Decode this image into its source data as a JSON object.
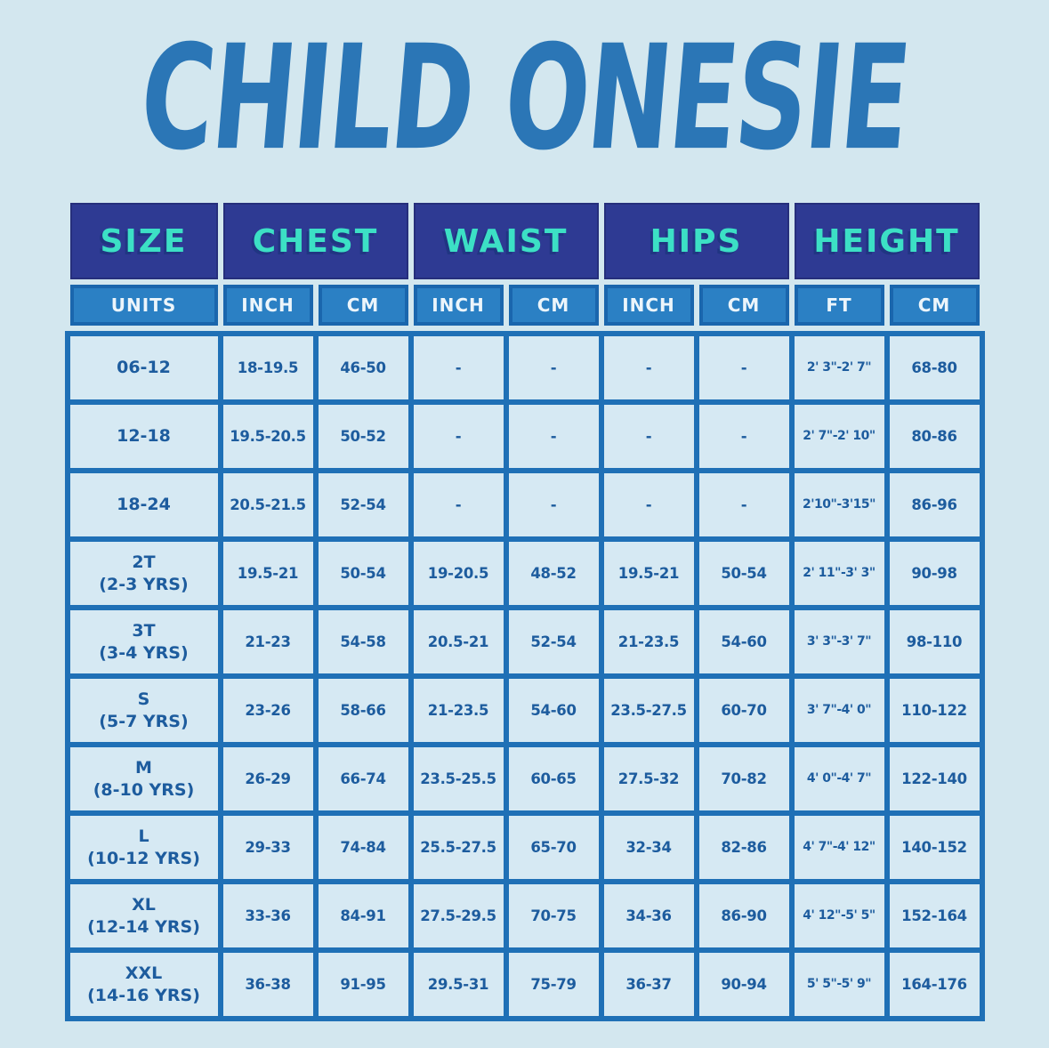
{
  "title": "CHILD ONESIE",
  "colors": {
    "page_background": "#d3e7ef",
    "title_blue": "#2b76b6",
    "header_navy": "#2e3a93",
    "header_teal_text": "#3ce0c5",
    "unit_header_blue": "#2b80c4",
    "unit_header_border": "#1a66ad",
    "unit_header_text": "#ecf5fb",
    "grid_border_blue": "#1f70b6",
    "cell_background": "#d6e9f3",
    "cell_text_blue": "#1d5c9e"
  },
  "table": {
    "column_groups": [
      {
        "label": "SIZE",
        "span": 1
      },
      {
        "label": "CHEST",
        "span": 2
      },
      {
        "label": "WAIST",
        "span": 2
      },
      {
        "label": "HIPS",
        "span": 2
      },
      {
        "label": "HEIGHT",
        "span": 2
      }
    ],
    "unit_headers": [
      "UNITS",
      "INCH",
      "CM",
      "INCH",
      "CM",
      "INCH",
      "CM",
      "FT",
      "CM"
    ],
    "rows": [
      {
        "size_line1": "06-12",
        "size_line2": "",
        "cells": [
          "18-19.5",
          "46-50",
          "-",
          "-",
          "-",
          "-",
          "2' 3\"-2' 7\"",
          "68-80"
        ]
      },
      {
        "size_line1": "12-18",
        "size_line2": "",
        "cells": [
          "19.5-20.5",
          "50-52",
          "-",
          "-",
          "-",
          "-",
          "2' 7\"-2' 10\"",
          "80-86"
        ]
      },
      {
        "size_line1": "18-24",
        "size_line2": "",
        "cells": [
          "20.5-21.5",
          "52-54",
          "-",
          "-",
          "-",
          "-",
          "2'10\"-3'15\"",
          "86-96"
        ]
      },
      {
        "size_line1": "2T",
        "size_line2": "(2-3 YRS)",
        "cells": [
          "19.5-21",
          "50-54",
          "19-20.5",
          "48-52",
          "19.5-21",
          "50-54",
          "2' 11\"-3' 3\"",
          "90-98"
        ]
      },
      {
        "size_line1": "3T",
        "size_line2": "(3-4 YRS)",
        "cells": [
          "21-23",
          "54-58",
          "20.5-21",
          "52-54",
          "21-23.5",
          "54-60",
          "3' 3\"-3' 7\"",
          "98-110"
        ]
      },
      {
        "size_line1": "S",
        "size_line2": "(5-7 YRS)",
        "cells": [
          "23-26",
          "58-66",
          "21-23.5",
          "54-60",
          "23.5-27.5",
          "60-70",
          "3' 7\"-4' 0\"",
          "110-122"
        ]
      },
      {
        "size_line1": "M",
        "size_line2": "(8-10 YRS)",
        "cells": [
          "26-29",
          "66-74",
          "23.5-25.5",
          "60-65",
          "27.5-32",
          "70-82",
          "4' 0\"-4' 7\"",
          "122-140"
        ]
      },
      {
        "size_line1": "L",
        "size_line2": "(10-12 YRS)",
        "cells": [
          "29-33",
          "74-84",
          "25.5-27.5",
          "65-70",
          "32-34",
          "82-86",
          "4' 7\"-4' 12\"",
          "140-152"
        ]
      },
      {
        "size_line1": "XL",
        "size_line2": "(12-14 YRS)",
        "cells": [
          "33-36",
          "84-91",
          "27.5-29.5",
          "70-75",
          "34-36",
          "86-90",
          "4' 12\"-5' 5\"",
          "152-164"
        ]
      },
      {
        "size_line1": "XXL",
        "size_line2": "(14-16 YRS)",
        "cells": [
          "36-38",
          "91-95",
          "29.5-31",
          "75-79",
          "36-37",
          "90-94",
          "5' 5\"-5' 9\"",
          "164-176"
        ]
      }
    ]
  }
}
